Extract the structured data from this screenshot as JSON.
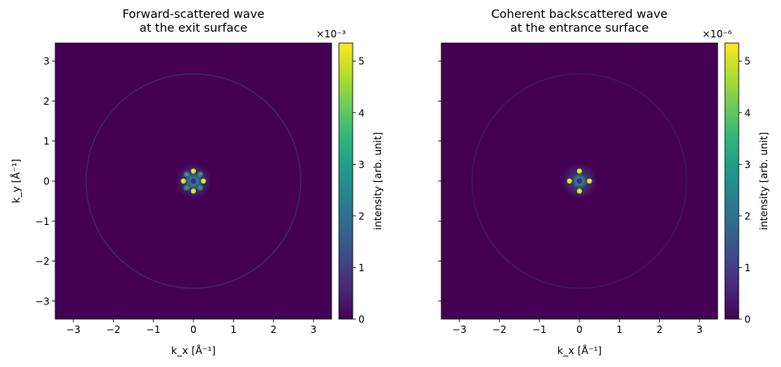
{
  "colormap": "viridis",
  "viridis_stops": [
    "#440154",
    "#482878",
    "#3e4989",
    "#31688e",
    "#26828e",
    "#1f9e89",
    "#35b779",
    "#6ece58",
    "#b5de2b",
    "#fde725"
  ],
  "chart_data": [
    {
      "type": "heatmap",
      "title_lines": [
        "Forward-scattered wave",
        "at the exit surface"
      ],
      "xlabel": "k_x [Å⁻¹]",
      "ylabel": "k_y [Å⁻¹]",
      "xlim": [
        -3.45,
        3.45
      ],
      "ylim": [
        -3.45,
        3.45
      ],
      "xticks": [
        -3,
        -2,
        -1,
        0,
        1,
        2,
        3
      ],
      "yticks": [
        -3,
        -2,
        -1,
        0,
        1,
        2,
        3
      ],
      "show_ytick_labels": true,
      "grid": false,
      "colorbar": {
        "label": "intensity [arb. unit]",
        "range": [
          0,
          5.35
        ],
        "ticks": [
          0,
          1,
          2,
          3,
          4,
          5
        ],
        "offset_text": "×10⁻³"
      },
      "ring_radius": 2.68,
      "ring_intensity_fraction": 0.08,
      "central_pattern": {
        "core_radius": 0.22,
        "halo_radius": 0.45,
        "bright_spots": [
          [
            0.25,
            0
          ],
          [
            -0.25,
            0
          ],
          [
            0,
            0.25
          ],
          [
            0,
            -0.25
          ]
        ],
        "side_lobes": [
          [
            0.17,
            0.17
          ],
          [
            -0.17,
            0.17
          ],
          [
            0.17,
            -0.17
          ],
          [
            -0.17,
            -0.17
          ]
        ],
        "peak_value": 5.3
      }
    },
    {
      "type": "heatmap",
      "title_lines": [
        "Coherent backscattered wave",
        "at the entrance surface"
      ],
      "xlabel": "k_x [Å⁻¹]",
      "ylabel": "",
      "xlim": [
        -3.45,
        3.45
      ],
      "ylim": [
        -3.45,
        3.45
      ],
      "xticks": [
        -3,
        -2,
        -1,
        0,
        1,
        2,
        3
      ],
      "yticks": [
        -3,
        -2,
        -1,
        0,
        1,
        2,
        3
      ],
      "show_ytick_labels": false,
      "grid": false,
      "colorbar": {
        "label": "intensity [arb. unit]",
        "range": [
          0,
          5.35
        ],
        "ticks": [
          0,
          1,
          2,
          3,
          4,
          5
        ],
        "offset_text": "×10⁻⁶"
      },
      "ring_radius": 2.68,
      "ring_intensity_fraction": 0.05,
      "central_pattern": {
        "core_radius": 0.2,
        "halo_radius": 0.45,
        "bright_spots": [
          [
            0.25,
            0
          ],
          [
            -0.25,
            0
          ],
          [
            0,
            0.25
          ],
          [
            0,
            -0.25
          ]
        ],
        "side_lobes": [],
        "peak_value": 5.3
      }
    }
  ]
}
